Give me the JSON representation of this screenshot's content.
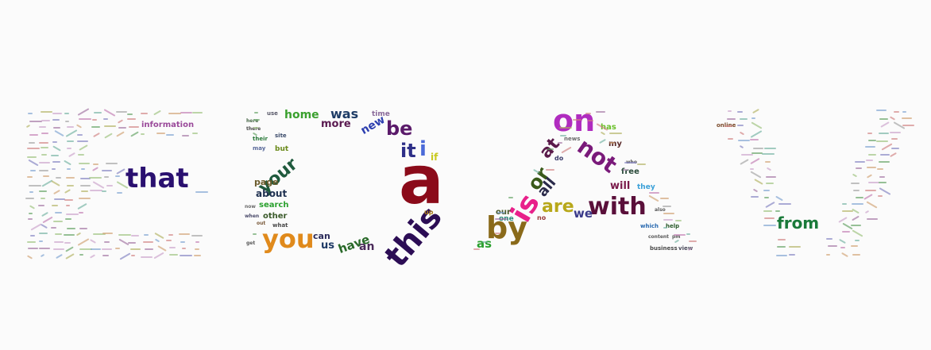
{
  "wordcloud": {
    "letters": [
      "E",
      "D",
      "A",
      "V"
    ],
    "words": [
      {
        "text": "that",
        "color": "#2a1070"
      },
      {
        "text": "information",
        "color": "#9a4a9a"
      },
      {
        "text": "a",
        "color": "#8b0b1a"
      },
      {
        "text": "this",
        "color": "#2c0d55"
      },
      {
        "text": "you",
        "color": "#e08a1c"
      },
      {
        "text": "your",
        "color": "#1f5a3d"
      },
      {
        "text": "it",
        "color": "#2e2f88"
      },
      {
        "text": "i",
        "color": "#4b6ad8"
      },
      {
        "text": "be",
        "color": "#5a1a6a"
      },
      {
        "text": "new",
        "color": "#2d3fb0"
      },
      {
        "text": "was",
        "color": "#1e3c66"
      },
      {
        "text": "more",
        "color": "#5a1a50"
      },
      {
        "text": "home",
        "color": "#3aa02e"
      },
      {
        "text": "time",
        "color": "#8a6a9a"
      },
      {
        "text": "page",
        "color": "#6a5a2a"
      },
      {
        "text": "about",
        "color": "#1e3050"
      },
      {
        "text": "search",
        "color": "#2aa02e"
      },
      {
        "text": "other",
        "color": "#3a5a2a"
      },
      {
        "text": "have",
        "color": "#2a6a2a"
      },
      {
        "text": "an",
        "color": "#4a2a5a"
      },
      {
        "text": "can",
        "color": "#2a2a5a"
      },
      {
        "text": "us",
        "color": "#1e3a66"
      },
      {
        "text": "but",
        "color": "#6a8a1a"
      },
      {
        "text": "if",
        "color": "#c8c81e"
      },
      {
        "text": "up",
        "color": "#a87a1a"
      },
      {
        "text": "site",
        "color": "#3a4a6a"
      },
      {
        "text": "their",
        "color": "#2a7a3a"
      },
      {
        "text": "may",
        "color": "#5a6a9a"
      },
      {
        "text": "what",
        "color": "#4a4a4a"
      },
      {
        "text": "out",
        "color": "#7a5a3a"
      },
      {
        "text": "on",
        "color": "#b02cbf"
      },
      {
        "text": "at",
        "color": "#5a1a4a"
      },
      {
        "text": "not",
        "color": "#7a1a7a"
      },
      {
        "text": "or",
        "color": "#3a5a1a"
      },
      {
        "text": "all",
        "color": "#2a2a4a"
      },
      {
        "text": "is",
        "color": "#e8208a"
      },
      {
        "text": "by",
        "color": "#8a6a1a"
      },
      {
        "text": "are",
        "color": "#b8a81a"
      },
      {
        "text": "with",
        "color": "#5a0f3a"
      },
      {
        "text": "as",
        "color": "#2aa02e"
      },
      {
        "text": "we",
        "color": "#3a3a8a"
      },
      {
        "text": "our",
        "color": "#4a5a2a"
      },
      {
        "text": "one",
        "color": "#2a8a7a"
      },
      {
        "text": "no",
        "color": "#9a3a3a"
      },
      {
        "text": "will",
        "color": "#7a1a4a"
      },
      {
        "text": "free",
        "color": "#2a4a3a"
      },
      {
        "text": "they",
        "color": "#3aa0d8"
      },
      {
        "text": "my",
        "color": "#5a2a2a"
      },
      {
        "text": "has",
        "color": "#6ac02a"
      },
      {
        "text": "which",
        "color": "#2a6ab0"
      },
      {
        "text": "help",
        "color": "#2a5a2a"
      },
      {
        "text": "news",
        "color": "#6a6a6a"
      },
      {
        "text": "business",
        "color": "#4a4a4a"
      },
      {
        "text": "view",
        "color": "#4a4a5a"
      },
      {
        "text": "do",
        "color": "#3a3a6a"
      },
      {
        "text": "from",
        "color": "#1a7a3a"
      },
      {
        "text": "online",
        "color": "#7a4a2a"
      },
      {
        "text": "use",
        "color": "#5a5a6a"
      },
      {
        "text": "here",
        "color": "#4a6a4a"
      },
      {
        "text": "there",
        "color": "#4a4a4a"
      },
      {
        "text": "get",
        "color": "#5a5a5a"
      },
      {
        "text": "when",
        "color": "#4a4a6a"
      },
      {
        "text": "now",
        "color": "#6a6a6a"
      },
      {
        "text": "who",
        "color": "#5a5a5a"
      },
      {
        "text": "also",
        "color": "#5a5a5a"
      },
      {
        "text": "content",
        "color": "#5a5a5a"
      },
      {
        "text": "pm",
        "color": "#5a5a5a"
      }
    ]
  }
}
